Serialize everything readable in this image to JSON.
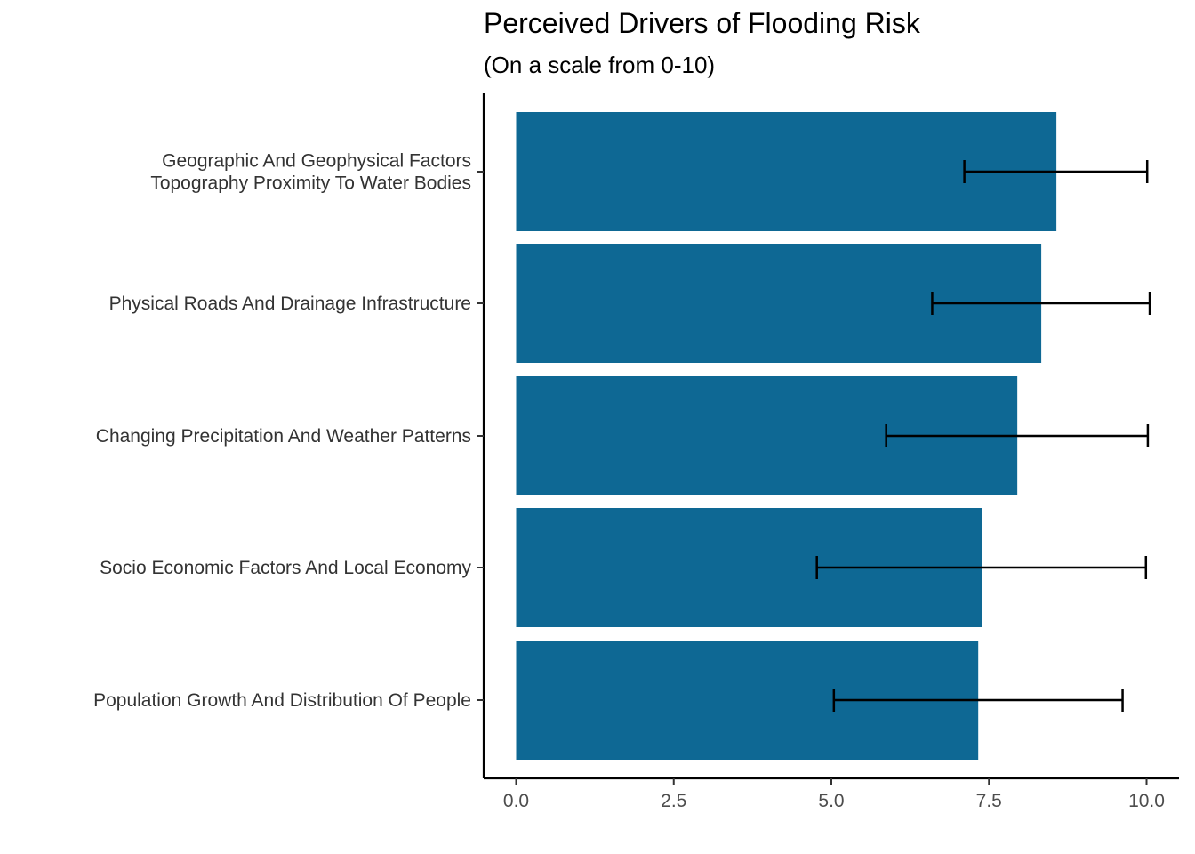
{
  "chart_data": {
    "type": "bar",
    "orientation": "horizontal",
    "title": "Perceived Drivers of Flooding Risk",
    "subtitle": "(On a scale from 0-10)",
    "xlabel": "",
    "ylabel": "",
    "xlim": [
      0,
      10
    ],
    "x_ticks": [
      "0.0",
      "2.5",
      "5.0",
      "7.5",
      "10.0"
    ],
    "x_tick_values": [
      0,
      2.5,
      5,
      7.5,
      10
    ],
    "grid": false,
    "bar_color": "#0e6894",
    "error_bar_color": "#000000",
    "categories": [
      [
        "Geographic And Geophysical Factors",
        "Topography Proximity To Water Bodies"
      ],
      [
        "Physical Roads And Drainage Infrastructure"
      ],
      [
        "Changing Precipitation And Weather Patterns"
      ],
      [
        "Socio Economic Factors And Local Economy"
      ],
      [
        "Population Growth And Distribution Of People"
      ]
    ],
    "values": [
      8.57,
      8.33,
      7.95,
      7.39,
      7.33
    ],
    "error_low": [
      7.11,
      6.6,
      5.87,
      4.77,
      5.04
    ],
    "error_high": [
      10.01,
      10.05,
      10.02,
      9.99,
      9.62
    ]
  }
}
